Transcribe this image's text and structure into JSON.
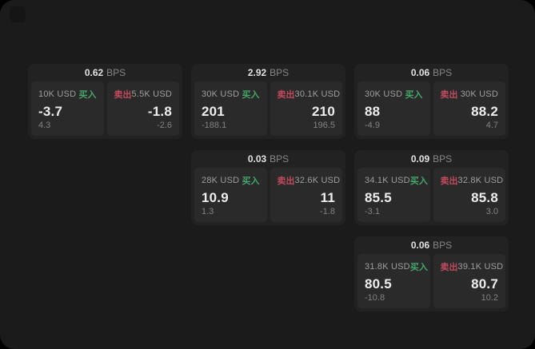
{
  "app": {
    "background": "#000000",
    "surface": "#1b1b1c",
    "card_bg": "#222223",
    "panel_bg": "#2a2a2b",
    "accent_green": "#46a56a",
    "accent_red": "#c2495d"
  },
  "labels": {
    "buy": "买入",
    "sell": "卖出",
    "bps": "BPS"
  },
  "cards": [
    {
      "bps": "0.62",
      "buy": {
        "amount": "10K USD",
        "value": "-3.7",
        "sub": "4.3"
      },
      "sell": {
        "amount": "5.5K USD",
        "value": "-1.8",
        "sub": "-2.6"
      }
    },
    {
      "bps": "2.92",
      "buy": {
        "amount": "30K USD",
        "value": "201",
        "sub": "-188.1"
      },
      "sell": {
        "amount": "30.1K USD",
        "value": "210",
        "sub": "196.5"
      }
    },
    {
      "bps": "0.06",
      "buy": {
        "amount": "30K USD",
        "value": "88",
        "sub": "-4.9"
      },
      "sell": {
        "amount": "30K USD",
        "value": "88.2",
        "sub": "4.7"
      }
    },
    {
      "bps": "0.03",
      "buy": {
        "amount": "28K USD",
        "value": "10.9",
        "sub": "1.3"
      },
      "sell": {
        "amount": "32.6K USD",
        "value": "11",
        "sub": "-1.8"
      }
    },
    {
      "bps": "0.09",
      "buy": {
        "amount": "34.1K USD",
        "value": "85.5",
        "sub": "-3.1"
      },
      "sell": {
        "amount": "32.8K USD",
        "value": "85.8",
        "sub": "3.0"
      }
    },
    {
      "bps": "0.06",
      "buy": {
        "amount": "31.8K USD",
        "value": "80.5",
        "sub": "-10.8"
      },
      "sell": {
        "amount": "39.1K USD",
        "value": "80.7",
        "sub": "10.2"
      }
    }
  ]
}
